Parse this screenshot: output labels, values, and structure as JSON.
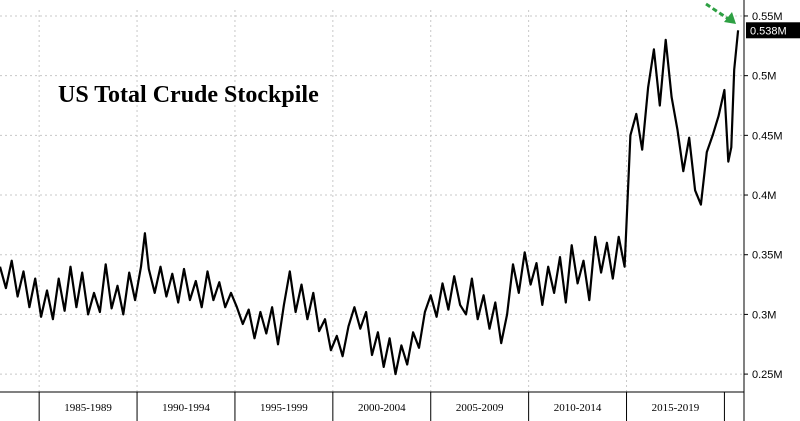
{
  "chart_data": {
    "type": "line",
    "title": "US Total Crude Stockpile",
    "xlabel": "",
    "ylabel": "",
    "x_range": [
      1983.0,
      2021.0
    ],
    "ylim": [
      0.235,
      0.555
    ],
    "y_ticks": [
      {
        "value": 0.25,
        "label": "0.25M"
      },
      {
        "value": 0.3,
        "label": "0.3M"
      },
      {
        "value": 0.35,
        "label": "0.35M"
      },
      {
        "value": 0.4,
        "label": "0.4M"
      },
      {
        "value": 0.45,
        "label": "0.45M"
      },
      {
        "value": 0.5,
        "label": "0.5M"
      },
      {
        "value": 0.55,
        "label": "0.55M"
      }
    ],
    "x_periods": [
      {
        "label": "1985-1989",
        "start": 1985,
        "end": 1990
      },
      {
        "label": "1990-1994",
        "start": 1990,
        "end": 1995
      },
      {
        "label": "1995-1999",
        "start": 1995,
        "end": 2000
      },
      {
        "label": "2000-2004",
        "start": 2000,
        "end": 2005
      },
      {
        "label": "2005-2009",
        "start": 2005,
        "end": 2010
      },
      {
        "label": "2010-2014",
        "start": 2010,
        "end": 2015
      },
      {
        "label": "2015-2019",
        "start": 2015,
        "end": 2020
      }
    ],
    "last_value_label": "0.538M",
    "grid": true,
    "colors": {
      "line": "#000000",
      "grid": "#c8c8c8",
      "badge": "#000000",
      "arrow": "#2ea043"
    },
    "series": [
      {
        "x": [
          1983.0,
          1983.3,
          1983.6,
          1983.9,
          1984.2,
          1984.5,
          1984.8,
          1985.1,
          1985.4,
          1985.7,
          1986.0,
          1986.3,
          1986.6,
          1986.9,
          1987.2,
          1987.5,
          1987.8,
          1988.1,
          1988.4,
          1988.7,
          1989.0,
          1989.3,
          1989.6,
          1989.9,
          1990.2,
          1990.4,
          1990.6,
          1990.9,
          1991.2,
          1991.5,
          1991.8,
          1992.1,
          1992.4,
          1992.7,
          1993.0,
          1993.3,
          1993.6,
          1993.9,
          1994.2,
          1994.5,
          1994.8,
          1995.1,
          1995.4,
          1995.7,
          1996.0,
          1996.3,
          1996.6,
          1996.9,
          1997.2,
          1997.5,
          1997.8,
          1998.1,
          1998.4,
          1998.7,
          1999.0,
          1999.3,
          1999.6,
          1999.9,
          2000.2,
          2000.5,
          2000.8,
          2001.1,
          2001.4,
          2001.7,
          2002.0,
          2002.3,
          2002.6,
          2002.9,
          2003.2,
          2003.5,
          2003.8,
          2004.1,
          2004.4,
          2004.7,
          2005.0,
          2005.3,
          2005.6,
          2005.9,
          2006.2,
          2006.5,
          2006.8,
          2007.1,
          2007.4,
          2007.7,
          2008.0,
          2008.3,
          2008.6,
          2008.9,
          2009.2,
          2009.5,
          2009.8,
          2010.1,
          2010.4,
          2010.7,
          2011.0,
          2011.3,
          2011.6,
          2011.9,
          2012.2,
          2012.5,
          2012.8,
          2013.1,
          2013.4,
          2013.7,
          2014.0,
          2014.3,
          2014.6,
          2014.9,
          2015.2,
          2015.5,
          2015.8,
          2016.1,
          2016.4,
          2016.7,
          2017.0,
          2017.3,
          2017.6,
          2017.9,
          2018.2,
          2018.5,
          2018.8,
          2019.1,
          2019.4,
          2019.7,
          2020.0,
          2020.2,
          2020.35,
          2020.5,
          2020.7
        ],
        "values": [
          0.34,
          0.322,
          0.345,
          0.315,
          0.336,
          0.306,
          0.33,
          0.298,
          0.32,
          0.296,
          0.33,
          0.303,
          0.34,
          0.306,
          0.335,
          0.3,
          0.318,
          0.302,
          0.342,
          0.305,
          0.324,
          0.3,
          0.335,
          0.312,
          0.34,
          0.368,
          0.338,
          0.318,
          0.34,
          0.315,
          0.334,
          0.31,
          0.338,
          0.312,
          0.328,
          0.306,
          0.336,
          0.312,
          0.327,
          0.306,
          0.318,
          0.306,
          0.292,
          0.304,
          0.28,
          0.302,
          0.284,
          0.306,
          0.275,
          0.308,
          0.336,
          0.302,
          0.325,
          0.296,
          0.318,
          0.286,
          0.296,
          0.27,
          0.282,
          0.265,
          0.29,
          0.306,
          0.288,
          0.302,
          0.266,
          0.285,
          0.256,
          0.28,
          0.25,
          0.274,
          0.258,
          0.285,
          0.272,
          0.302,
          0.316,
          0.298,
          0.326,
          0.304,
          0.332,
          0.308,
          0.3,
          0.33,
          0.296,
          0.316,
          0.288,
          0.31,
          0.276,
          0.3,
          0.342,
          0.318,
          0.352,
          0.325,
          0.343,
          0.308,
          0.34,
          0.318,
          0.348,
          0.31,
          0.358,
          0.326,
          0.345,
          0.312,
          0.365,
          0.335,
          0.36,
          0.33,
          0.365,
          0.34,
          0.45,
          0.468,
          0.438,
          0.49,
          0.522,
          0.475,
          0.53,
          0.482,
          0.455,
          0.42,
          0.448,
          0.404,
          0.392,
          0.436,
          0.45,
          0.466,
          0.488,
          0.428,
          0.44,
          0.505,
          0.538
        ]
      }
    ]
  }
}
